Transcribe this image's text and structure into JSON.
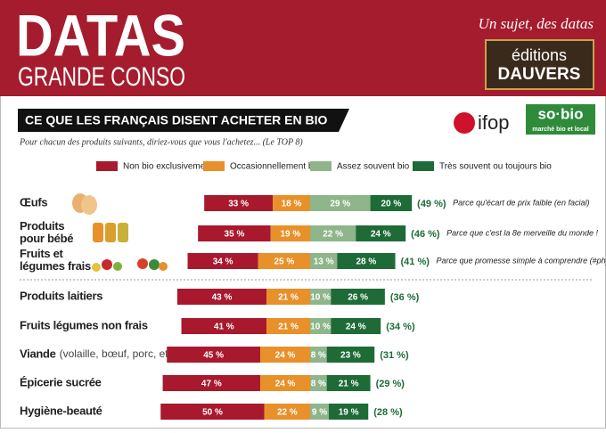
{
  "header": {
    "brand_top": "DATAS",
    "brand_bottom": "GRANDE CONSO",
    "tagline": "Un sujet, des datas",
    "publisher_top": "éditions",
    "publisher_bottom": "DAUVERS",
    "logo_ifop": "ifop",
    "logo_sobio": "so·bio",
    "logo_sobio_sub": "marché bio et local"
  },
  "chart_data": {
    "type": "bar",
    "orientation": "horizontal",
    "stacked": true,
    "title": "CE QUE LES FRANÇAIS DISENT ACHETER EN  BIO",
    "subtitle": "Pour chacun des produits suivants, diriez-vous que vous l'achetez... (Le TOP 8)",
    "categories": [
      "Œufs",
      "Produits pour bébé",
      "Fruits et légumes frais",
      "Produits laitiers",
      "Fruits légumes non frais",
      "Viande",
      "Épicerie sucrée",
      "Hygiène-beauté"
    ],
    "category_details": [
      null,
      null,
      null,
      null,
      null,
      "(volaille, bœuf, porc, etc.)",
      null,
      null
    ],
    "series": [
      {
        "name": "Non bio exclusivement",
        "color": "#a8192e",
        "values": [
          33,
          35,
          34,
          43,
          41,
          45,
          47,
          50
        ],
        "value_labels": [
          "33 %",
          "35 %",
          "34 %",
          "43 %",
          "41 %",
          "45 %",
          "47 %",
          "50 %"
        ]
      },
      {
        "name": "Occasionnellement bio",
        "color": "#e8902a",
        "values": [
          18,
          19,
          25,
          21,
          21,
          24,
          24,
          22
        ],
        "value_labels": [
          "18 %",
          "19 %",
          "25 %",
          "21 %",
          "21 %",
          "24 %",
          "24 %",
          "22 %"
        ]
      },
      {
        "name": "Assez souvent bio",
        "color": "#8fb58a",
        "values": [
          29,
          22,
          13,
          10,
          10,
          8,
          8,
          9
        ],
        "value_labels": [
          "29 %",
          "22 %",
          "13 %",
          "10 %",
          "10 %",
          "8 %",
          "8 %",
          "9 %"
        ]
      },
      {
        "name": "Très souvent ou toujours bio",
        "color": "#1e6b37",
        "values": [
          20,
          24,
          28,
          26,
          24,
          23,
          21,
          19
        ],
        "value_labels": [
          "20 %",
          "24 %",
          "28 %",
          "26 %",
          "24 %",
          "23 %",
          "21 %",
          "19 %"
        ]
      }
    ],
    "bio_share": {
      "values": [
        49,
        46,
        41,
        36,
        34,
        31,
        29,
        28
      ],
      "value_labels": [
        "(49 %)",
        "(46 %)",
        "(41 %)",
        "(36 %)",
        "(34 %)",
        "(31 %)",
        "(29 %)",
        "(28 %)"
      ]
    },
    "notes": [
      "Parce qu'écart de prix faible (en facial)",
      "Parce que c'est la 8e merveille du monde !",
      "Parce que promesse simple à comprendre (#phyto)",
      null,
      null,
      null,
      null,
      null
    ]
  }
}
